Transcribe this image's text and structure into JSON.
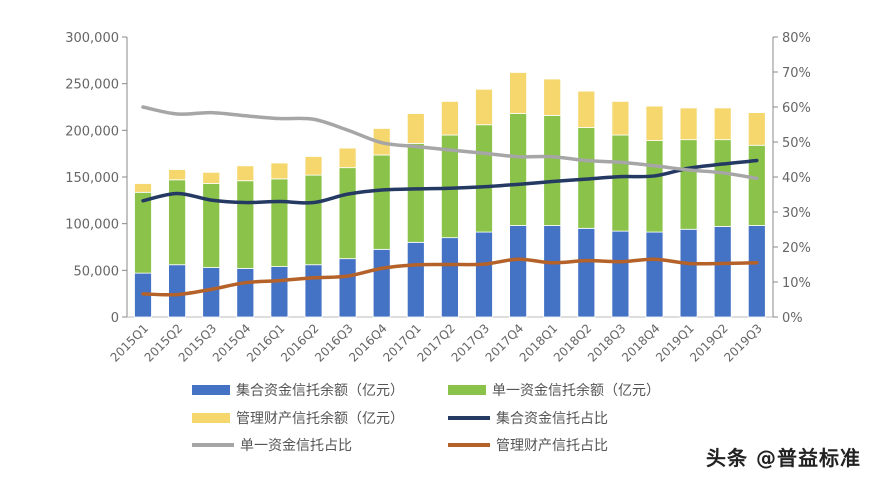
{
  "chart_data": {
    "type": "bar+line",
    "categories": [
      "2015Q1",
      "2015Q2",
      "2015Q3",
      "2015Q4",
      "2016Q1",
      "2016Q2",
      "2016Q3",
      "2016Q4",
      "2017Q1",
      "2017Q2",
      "2017Q3",
      "2017Q4",
      "2018Q1",
      "2018Q2",
      "2018Q3",
      "2018Q4",
      "2019Q1",
      "2019Q2",
      "2019Q3"
    ],
    "left_axis": {
      "ylim": [
        0,
        300000
      ],
      "ticks": [
        "0",
        "50,000",
        "100,000",
        "150,000",
        "200,000",
        "250,000",
        "300,000"
      ]
    },
    "right_axis": {
      "ylim": [
        0,
        80
      ],
      "ticks": [
        "0%",
        "10%",
        "20%",
        "30%",
        "40%",
        "50%",
        "60%",
        "70%",
        "80%"
      ]
    },
    "bar_series": [
      {
        "name": "集合资金信托余额（亿元）",
        "color": "#4472c4",
        "values": [
          47000,
          56000,
          53000,
          52000,
          54000,
          56000,
          62500,
          72500,
          80000,
          85000,
          91000,
          98000,
          98000,
          95000,
          92000,
          91000,
          94000,
          97000,
          98000
        ]
      },
      {
        "name": "单一资金信托余额（亿元）",
        "color": "#8bc34a",
        "values": [
          86600,
          91000,
          90000,
          94000,
          94000,
          96000,
          97500,
          101100,
          106000,
          110000,
          115000,
          120000,
          118000,
          108000,
          103000,
          98000,
          96000,
          93000,
          86000
        ]
      },
      {
        "name": "管理财产信托余额（亿元）",
        "color": "#f5d76e",
        "values": [
          9400,
          11000,
          12000,
          16000,
          17000,
          20000,
          21000,
          28400,
          32000,
          36000,
          38000,
          44000,
          39000,
          39000,
          36000,
          37000,
          34000,
          34000,
          35000
        ]
      }
    ],
    "line_series": [
      {
        "name": "集合资金信托占比",
        "color": "#243a63",
        "values": [
          33.2,
          35.3,
          33.4,
          32.7,
          33.0,
          32.7,
          35.1,
          36.3,
          36.6,
          36.8,
          37.2,
          37.9,
          38.7,
          39.4,
          40.1,
          40.3,
          42.5,
          43.7,
          44.7
        ]
      },
      {
        "name": "单一资金信托占比",
        "color": "#a6a6a6",
        "values": [
          60.0,
          58.0,
          58.4,
          57.5,
          56.7,
          56.5,
          53.4,
          49.8,
          48.7,
          47.7,
          46.8,
          45.8,
          45.8,
          44.7,
          44.2,
          43.2,
          42.0,
          41.2,
          39.6
        ]
      },
      {
        "name": "管理财产信托占比",
        "color": "#b5622a",
        "values": [
          6.6,
          6.4,
          7.9,
          9.8,
          10.4,
          11.2,
          11.7,
          13.9,
          14.9,
          15.0,
          15.1,
          16.5,
          15.5,
          16.1,
          15.8,
          16.5,
          15.3,
          15.3,
          15.5
        ]
      }
    ],
    "grid": false,
    "legend_position": "bottom"
  },
  "watermark": "头条 @普益标准"
}
